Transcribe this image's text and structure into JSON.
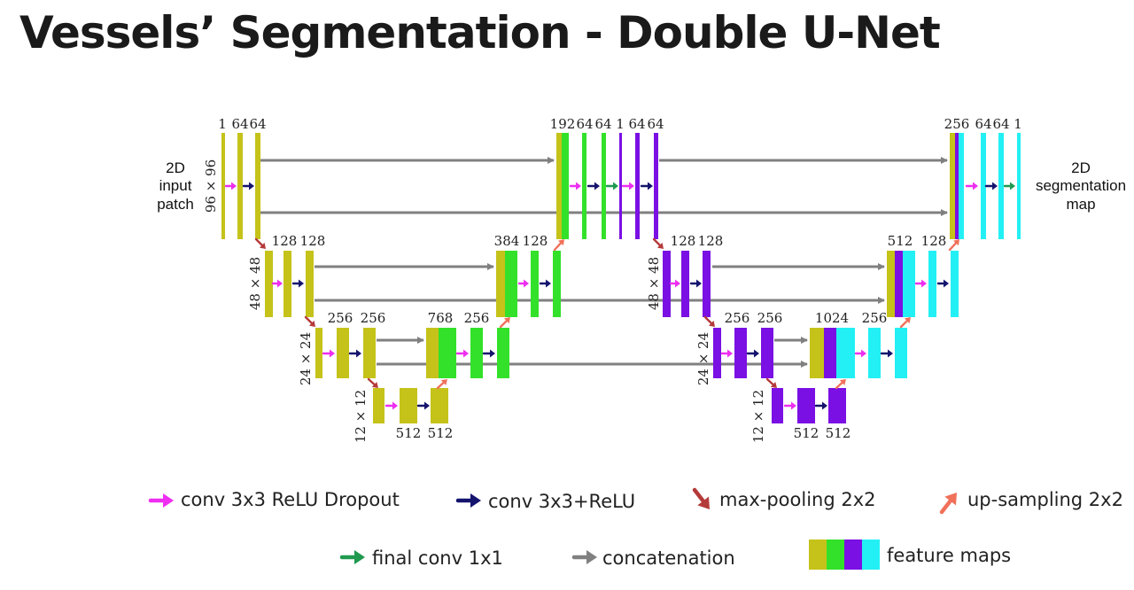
{
  "title": "Vessels’ Segmentation - Double U-Net",
  "colors": {
    "yellow": "#c5c21a",
    "green": "#33e12a",
    "purple": "#7a10e3",
    "cyan": "#23f0f4",
    "conv_dropout_arrow": "#ee2ef0",
    "conv_relu_arrow": "#14146e",
    "max_pool_arrow": "#b53a3a",
    "up_sample_arrow": "#f0705a",
    "final_conv_arrow": "#1f9a4f",
    "concat_arrow": "#808080"
  },
  "diagram": {
    "input_label": [
      "2D",
      "input",
      "patch"
    ],
    "output_label": [
      "2D",
      "segmentation",
      "map"
    ],
    "size_labels": {
      "l1": "96 × 96",
      "l2a": "48 × 48",
      "l3a": "24 × 24",
      "l4a": "12 × 12",
      "l2b": "48 × 48",
      "l3b": "24 × 24",
      "l4b": "12 × 12"
    },
    "channel_labels": {
      "in_1": "1",
      "in_64a": "64",
      "in_64b": "64",
      "mid_192": "192",
      "mid_64a": "64",
      "mid_64b": "64",
      "mid_1": "1",
      "mid_64c": "64",
      "mid_64d": "64",
      "out_256": "256",
      "out_64a": "64",
      "out_64b": "64",
      "out_1": "1",
      "e1_128a": "128",
      "e1_128b": "128",
      "d1_384": "384",
      "d1_128": "128",
      "e1_256a": "256",
      "e1_256b": "256",
      "d1_768": "768",
      "d1_256": "256",
      "b1_512a": "512",
      "b1_512b": "512",
      "e2_128a": "128",
      "e2_128b": "128",
      "d2_512": "512",
      "d2_128": "128",
      "e2_256a": "256",
      "e2_256b": "256",
      "d2_1024": "1024",
      "d2_256": "256",
      "b2_512a": "512",
      "b2_512b": "512"
    }
  },
  "legend": {
    "conv_dropout": "conv 3x3 ReLU Dropout",
    "conv_relu": "conv 3x3+ReLU",
    "max_pool": "max-pooling 2x2",
    "up_sample": "up-sampling 2x2",
    "final_conv": "final conv 1x1",
    "concat": "concatenation",
    "feature_maps": "feature maps"
  }
}
